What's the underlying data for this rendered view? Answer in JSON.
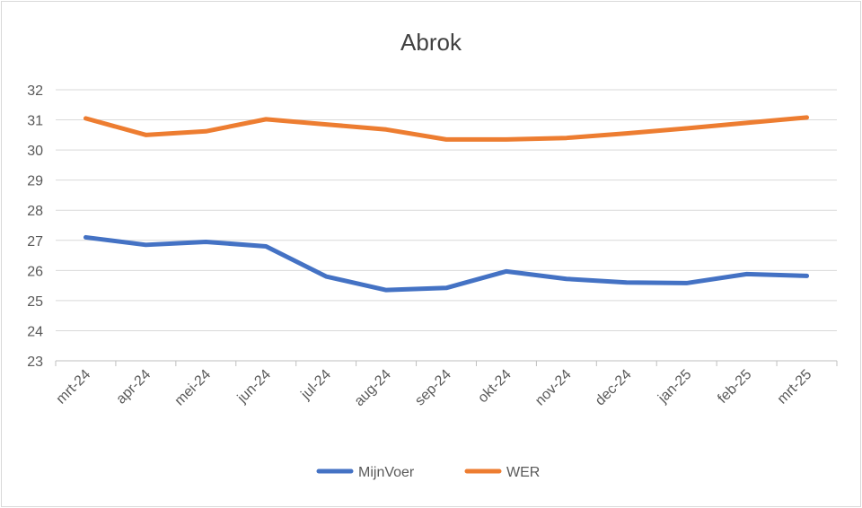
{
  "chart_data": {
    "type": "line",
    "title": "Abrok",
    "xlabel": "",
    "ylabel": "",
    "categories": [
      "mrt-24",
      "apr-24",
      "mei-24",
      "jun-24",
      "jul-24",
      "aug-24",
      "sep-24",
      "okt-24",
      "nov-24",
      "dec-24",
      "jan-25",
      "feb-25",
      "mrt-25"
    ],
    "ylim": [
      23,
      32
    ],
    "yticks": [
      "23",
      "24",
      "25",
      "26",
      "27",
      "28",
      "29",
      "30",
      "31",
      "32"
    ],
    "grid": true,
    "legend_position": "bottom",
    "series": [
      {
        "name": "MijnVoer",
        "color": "#4472c4",
        "values": [
          27.1,
          26.85,
          26.95,
          26.8,
          25.8,
          25.35,
          25.42,
          25.97,
          25.72,
          25.6,
          25.58,
          25.88,
          25.82
        ]
      },
      {
        "name": "WER",
        "color": "#ed7d31",
        "values": [
          31.05,
          30.5,
          30.62,
          31.02,
          30.85,
          30.68,
          30.35,
          30.35,
          30.4,
          30.55,
          30.72,
          30.9,
          31.08
        ]
      }
    ]
  }
}
